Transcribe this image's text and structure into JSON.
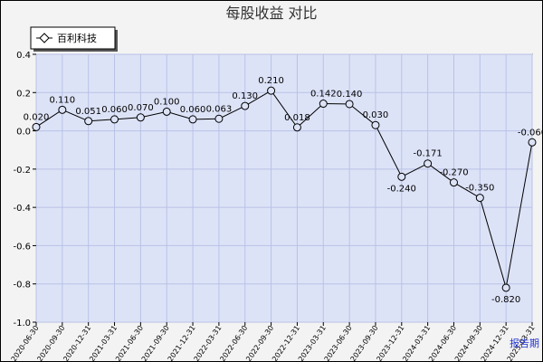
{
  "chart_data": {
    "type": "line",
    "title": "每股收益  对比",
    "legend": {
      "placement": "top-left",
      "entries": [
        "百利科技"
      ]
    },
    "grid": true,
    "ylim": [
      -1.0,
      0.4
    ],
    "y_ticks": [
      "0.4",
      "0.2",
      "0.0",
      "-0.2",
      "-0.4",
      "-0.6",
      "-0.8",
      "-1.0"
    ],
    "x": [
      "2020-06-30",
      "2020-09-30",
      "2020-12-31",
      "2021-03-31",
      "2021-06-30",
      "2021-09-30",
      "2021-12-31",
      "2022-03-31",
      "2022-06-30",
      "2022-09-30",
      "2022-12-31",
      "2023-03-31",
      "2023-06-30",
      "2023-09-30",
      "2023-12-31",
      "2024-03-31",
      "2024-06-30",
      "2024-09-30",
      "2024-12-31",
      "2025-03-31"
    ],
    "x_tick_labels": [
      "2020-06-30",
      "2020-09-30",
      "2020-12-31",
      "2021-03-31",
      "2021-06-30",
      "2021-09-30",
      "2021-12-31",
      "2022-03-31",
      "2022-06-30",
      "2022-09-30",
      "2022-12-31",
      "2023-03-31",
      "2023-06-30",
      "2023-09-30",
      "2023-12-31",
      "2024-03-31",
      "2024-06-30",
      "2024-09-30",
      "2024-12-31",
      "2025-03-31"
    ],
    "series": [
      {
        "name": "百利科技",
        "values": [
          0.02,
          0.11,
          0.051,
          0.06,
          0.07,
          0.1,
          0.06,
          0.063,
          0.13,
          0.21,
          0.018,
          0.142,
          0.14,
          0.03,
          -0.24,
          -0.171,
          -0.27,
          -0.35,
          -0.82,
          -0.06
        ],
        "labels": [
          "0.020",
          "0.110",
          "0.051",
          "0.060",
          "0.070",
          "0.100",
          "0.060",
          "0.063",
          "0.130",
          "0.210",
          "0.018",
          "0.142",
          "0.140",
          "0.030",
          "-0.240",
          "-0.171",
          "-0.270",
          "-0.350",
          "-0.820",
          "-0.060"
        ],
        "show_label": [
          true,
          true,
          true,
          true,
          true,
          true,
          true,
          true,
          true,
          true,
          true,
          true,
          true,
          true,
          true,
          true,
          true,
          true,
          true,
          true
        ]
      }
    ],
    "footer_label": "报告期",
    "colors": {
      "plot_bg": "#dde3f7",
      "line": "#000000",
      "grid": "#b8c2e6",
      "frame_bg": "#f3f3f3"
    }
  }
}
